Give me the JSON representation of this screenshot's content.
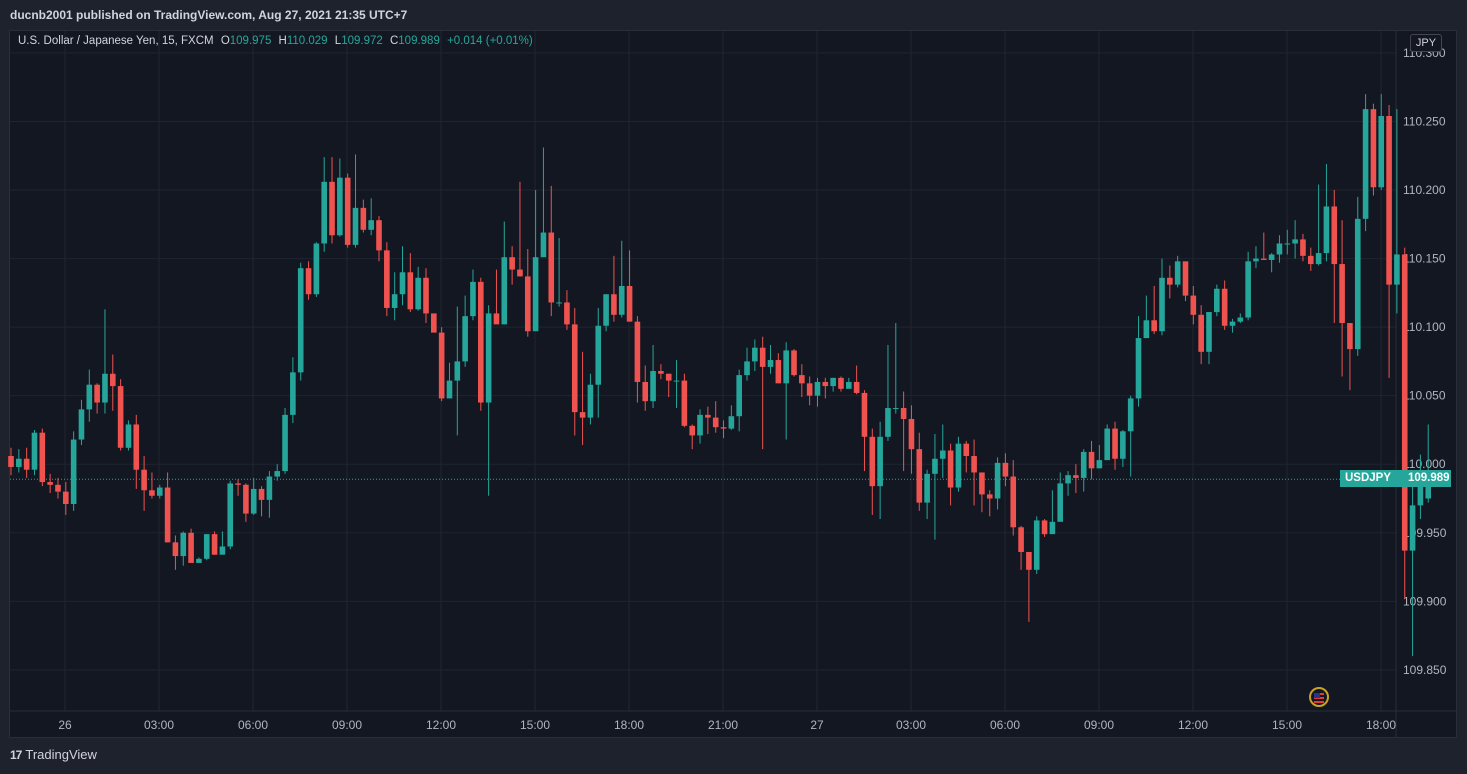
{
  "header": {
    "published_text": "ducnb2001 published on TradingView.com, Aug 27, 2021 21:35 UTC+7"
  },
  "legend": {
    "instrument": "U.S. Dollar / Japanese Yen, 15, FXCM",
    "o_label": "O",
    "o_value": "109.975",
    "h_label": "H",
    "h_value": "110.029",
    "l_label": "L",
    "l_value": "109.972",
    "c_label": "C",
    "c_value": "109.989",
    "change": "+0.014 (+0.01%)"
  },
  "currency_badge": "JPY",
  "price_tag": {
    "symbol": "USDJPY",
    "value": "109.989"
  },
  "footer": {
    "brand": "TradingView",
    "logo_glyph": "17"
  },
  "colors": {
    "up": "#26a69a",
    "down": "#ef5350",
    "background": "#131722",
    "grid": "#1f2430",
    "text": "#b2b5be"
  },
  "icons": {
    "flag": "us-flag-icon",
    "logo": "tradingview-logo-icon"
  },
  "chart_data": {
    "type": "candlestick",
    "symbol": "USDJPY",
    "interval": "15",
    "ylim": [
      109.82,
      110.316
    ],
    "y_ticks": [
      "110.300",
      "110.250",
      "110.200",
      "110.150",
      "110.100",
      "110.050",
      "110.000",
      "109.950",
      "109.900",
      "109.850"
    ],
    "x_ticks": [
      "26",
      "03:00",
      "06:00",
      "09:00",
      "12:00",
      "15:00",
      "18:00",
      "21:00",
      "27",
      "03:00",
      "06:00",
      "09:00",
      "12:00",
      "15:00",
      "18:00"
    ],
    "last_price": 109.989,
    "grid": true,
    "candles": [
      [
        110.006,
        109.998,
        110.012,
        109.992
      ],
      [
        109.998,
        110.004,
        110.011,
        109.994
      ],
      [
        110.004,
        109.996,
        110.012,
        109.99
      ],
      [
        109.996,
        110.023,
        110.025,
        109.992
      ],
      [
        110.023,
        109.987,
        110.026,
        109.984
      ],
      [
        109.987,
        109.985,
        109.993,
        109.979
      ],
      [
        109.985,
        109.98,
        109.99,
        109.975
      ],
      [
        109.98,
        109.971,
        109.987,
        109.963
      ],
      [
        109.971,
        110.018,
        110.024,
        109.966
      ],
      [
        110.018,
        110.04,
        110.047,
        110.014
      ],
      [
        110.04,
        110.058,
        110.069,
        110.031
      ],
      [
        110.058,
        110.045,
        110.059,
        110.037
      ],
      [
        110.045,
        110.066,
        110.113,
        110.037
      ],
      [
        110.066,
        110.057,
        110.08,
        110.039
      ],
      [
        110.057,
        110.012,
        110.062,
        110.01
      ],
      [
        110.012,
        110.029,
        110.032,
        110.01
      ],
      [
        110.029,
        109.996,
        110.036,
        109.982
      ],
      [
        109.996,
        109.981,
        110.006,
        109.966
      ],
      [
        109.981,
        109.977,
        109.994,
        109.975
      ],
      [
        109.977,
        109.983,
        109.985,
        109.975
      ],
      [
        109.983,
        109.943,
        109.994,
        109.943
      ],
      [
        109.943,
        109.933,
        109.948,
        109.923
      ],
      [
        109.933,
        109.95,
        109.951,
        109.926
      ],
      [
        109.95,
        109.928,
        109.953,
        109.93
      ],
      [
        109.928,
        109.931,
        109.932,
        109.93
      ],
      [
        109.931,
        109.949,
        109.949,
        109.93
      ],
      [
        109.949,
        109.934,
        109.951,
        109.934
      ],
      [
        109.934,
        109.94,
        109.951,
        109.938
      ],
      [
        109.94,
        109.986,
        109.988,
        109.938
      ],
      [
        109.986,
        109.985,
        109.989,
        109.977
      ],
      [
        109.985,
        109.964,
        109.986,
        109.958
      ],
      [
        109.964,
        109.982,
        109.99,
        109.963
      ],
      [
        109.982,
        109.974,
        109.984,
        109.962
      ],
      [
        109.974,
        109.991,
        109.995,
        109.961
      ],
      [
        109.991,
        109.995,
        110.0,
        109.988
      ],
      [
        109.995,
        110.036,
        110.041,
        109.993
      ],
      [
        110.036,
        110.067,
        110.078,
        110.03
      ],
      [
        110.067,
        110.143,
        110.147,
        110.061
      ],
      [
        110.143,
        110.124,
        110.148,
        110.12
      ],
      [
        110.124,
        110.161,
        110.162,
        110.122
      ],
      [
        110.161,
        110.206,
        110.224,
        110.155
      ],
      [
        110.206,
        110.167,
        110.224,
        110.161
      ],
      [
        110.167,
        110.209,
        110.223,
        110.166
      ],
      [
        110.209,
        110.16,
        110.212,
        110.158
      ],
      [
        110.16,
        110.187,
        110.226,
        110.158
      ],
      [
        110.187,
        110.171,
        110.193,
        110.169
      ],
      [
        110.171,
        110.178,
        110.194,
        110.167
      ],
      [
        110.178,
        110.156,
        110.181,
        110.148
      ],
      [
        110.156,
        110.114,
        110.162,
        110.108
      ],
      [
        110.114,
        110.124,
        110.14,
        110.105
      ],
      [
        110.124,
        110.14,
        110.159,
        110.116
      ],
      [
        110.14,
        110.113,
        110.154,
        110.111
      ],
      [
        110.113,
        110.136,
        110.144,
        110.112
      ],
      [
        110.136,
        110.11,
        110.143,
        110.103
      ],
      [
        110.11,
        110.096,
        110.108,
        110.097
      ],
      [
        110.096,
        110.048,
        110.1,
        110.046
      ],
      [
        110.048,
        110.061,
        110.074,
        110.049
      ],
      [
        110.061,
        110.075,
        110.115,
        110.021
      ],
      [
        110.075,
        110.108,
        110.123,
        110.071
      ],
      [
        110.108,
        110.133,
        110.142,
        110.105
      ],
      [
        110.133,
        110.045,
        110.136,
        110.039
      ],
      [
        110.045,
        110.11,
        110.116,
        109.977
      ],
      [
        110.11,
        110.102,
        110.142,
        110.106
      ],
      [
        110.102,
        110.151,
        110.177,
        110.147
      ],
      [
        110.151,
        110.142,
        110.159,
        110.131
      ],
      [
        110.142,
        110.137,
        110.206,
        110.139
      ],
      [
        110.137,
        110.097,
        110.157,
        110.093
      ],
      [
        110.097,
        110.151,
        110.2,
        110.147
      ],
      [
        110.151,
        110.169,
        110.231,
        110.165
      ],
      [
        110.169,
        110.118,
        110.203,
        110.108
      ],
      [
        110.118,
        110.118,
        110.165,
        110.115
      ],
      [
        110.118,
        110.102,
        110.127,
        110.098
      ],
      [
        110.102,
        110.038,
        110.114,
        110.021
      ],
      [
        110.038,
        110.034,
        110.082,
        110.014
      ],
      [
        110.034,
        110.058,
        110.066,
        110.029
      ],
      [
        110.058,
        110.101,
        110.114,
        110.034
      ],
      [
        110.101,
        110.124,
        110.124,
        110.097
      ],
      [
        110.124,
        110.109,
        110.152,
        110.104
      ],
      [
        110.109,
        110.13,
        110.163,
        110.107
      ],
      [
        110.13,
        110.104,
        110.156,
        110.106
      ],
      [
        110.104,
        110.06,
        110.108,
        110.045
      ],
      [
        110.06,
        110.046,
        110.072,
        110.039
      ],
      [
        110.046,
        110.068,
        110.087,
        110.041
      ],
      [
        110.068,
        110.066,
        110.073,
        110.062
      ],
      [
        110.066,
        110.061,
        110.066,
        110.049
      ],
      [
        110.061,
        110.061,
        110.076,
        110.041
      ],
      [
        110.061,
        110.028,
        110.066,
        110.027
      ],
      [
        110.028,
        110.021,
        110.029,
        110.011
      ],
      [
        110.021,
        110.036,
        110.04,
        110.015
      ],
      [
        110.036,
        110.034,
        110.042,
        110.022
      ],
      [
        110.034,
        110.027,
        110.046,
        110.023
      ],
      [
        110.027,
        110.026,
        110.032,
        110.019
      ],
      [
        110.026,
        110.035,
        110.043,
        110.025
      ],
      [
        110.035,
        110.065,
        110.069,
        110.024
      ],
      [
        110.065,
        110.075,
        110.085,
        110.061
      ],
      [
        110.075,
        110.085,
        110.091,
        110.068
      ],
      [
        110.085,
        110.071,
        110.093,
        110.011
      ],
      [
        110.071,
        110.076,
        110.087,
        110.066
      ],
      [
        110.076,
        110.059,
        110.081,
        110.062
      ],
      [
        110.059,
        110.083,
        110.089,
        110.018
      ],
      [
        110.083,
        110.065,
        110.084,
        110.064
      ],
      [
        110.065,
        110.059,
        110.073,
        110.049
      ],
      [
        110.059,
        110.05,
        110.064,
        110.043
      ],
      [
        110.05,
        110.06,
        110.063,
        110.042
      ],
      [
        110.06,
        110.057,
        110.063,
        110.048
      ],
      [
        110.057,
        110.063,
        110.063,
        110.053
      ],
      [
        110.063,
        110.055,
        110.064,
        110.053
      ],
      [
        110.055,
        110.06,
        110.063,
        110.058
      ],
      [
        110.06,
        110.052,
        110.072,
        110.051
      ],
      [
        110.052,
        110.02,
        110.054,
        109.995
      ],
      [
        110.02,
        109.984,
        110.026,
        109.963
      ],
      [
        109.984,
        110.02,
        110.031,
        109.96
      ],
      [
        110.02,
        110.041,
        110.087,
        110.017
      ],
      [
        110.041,
        110.041,
        110.103,
        110.037
      ],
      [
        110.041,
        110.033,
        110.053,
        109.995
      ],
      [
        110.033,
        110.011,
        110.043,
        109.993
      ],
      [
        110.011,
        109.972,
        110.023,
        109.966
      ],
      [
        109.972,
        109.993,
        109.996,
        109.96
      ],
      [
        109.993,
        110.004,
        110.022,
        109.945
      ],
      [
        110.004,
        110.01,
        110.029,
        109.99
      ],
      [
        110.01,
        109.983,
        110.015,
        109.97
      ],
      [
        109.983,
        110.015,
        110.02,
        109.98
      ],
      [
        110.015,
        110.006,
        110.017,
        109.994
      ],
      [
        110.006,
        109.994,
        110.018,
        109.97
      ],
      [
        109.994,
        109.978,
        109.992,
        109.965
      ],
      [
        109.978,
        109.975,
        109.981,
        109.962
      ],
      [
        109.975,
        110.001,
        110.005,
        109.967
      ],
      [
        110.001,
        109.991,
        110.008,
        109.984
      ],
      [
        109.991,
        109.954,
        110.003,
        109.948
      ],
      [
        109.954,
        109.936,
        109.955,
        109.923
      ],
      [
        109.936,
        109.923,
        109.936,
        109.885
      ],
      [
        109.923,
        109.959,
        109.962,
        109.92
      ],
      [
        109.959,
        109.949,
        109.96,
        109.947
      ],
      [
        109.949,
        109.958,
        109.981,
        109.957
      ],
      [
        109.958,
        109.986,
        109.994,
        109.96
      ],
      [
        109.986,
        109.992,
        109.995,
        109.977
      ],
      [
        109.992,
        109.99,
        110.0,
        109.979
      ],
      [
        109.99,
        110.009,
        110.011,
        109.98
      ],
      [
        110.009,
        109.997,
        110.017,
        109.989
      ],
      [
        109.997,
        110.003,
        110.014,
        109.999
      ],
      [
        110.003,
        110.026,
        110.029,
        110.003
      ],
      [
        110.026,
        110.004,
        110.031,
        109.996
      ],
      [
        110.004,
        110.024,
        110.025,
        109.998
      ],
      [
        110.024,
        110.048,
        110.05,
        109.991
      ],
      [
        110.048,
        110.092,
        110.108,
        110.042
      ],
      [
        110.092,
        110.105,
        110.123,
        110.095
      ],
      [
        110.105,
        110.097,
        110.13,
        110.095
      ],
      [
        110.097,
        110.136,
        110.15,
        110.094
      ],
      [
        110.136,
        110.131,
        110.145,
        110.121
      ],
      [
        110.131,
        110.148,
        110.152,
        110.129
      ],
      [
        110.148,
        110.123,
        110.144,
        110.119
      ],
      [
        110.123,
        110.109,
        110.13,
        110.102
      ],
      [
        110.109,
        110.082,
        110.116,
        110.073
      ],
      [
        110.082,
        110.111,
        110.11,
        110.073
      ],
      [
        110.111,
        110.128,
        110.131,
        110.108
      ],
      [
        110.128,
        110.101,
        110.134,
        110.098
      ],
      [
        110.101,
        110.104,
        110.106,
        110.096
      ],
      [
        110.104,
        110.107,
        110.11,
        110.103
      ],
      [
        110.107,
        110.148,
        110.155,
        110.105
      ],
      [
        110.148,
        110.15,
        110.159,
        110.143
      ],
      [
        110.15,
        110.149,
        110.169,
        110.15
      ],
      [
        110.149,
        110.153,
        110.154,
        110.14
      ],
      [
        110.153,
        110.161,
        110.167,
        110.147
      ],
      [
        110.161,
        110.161,
        110.171,
        110.153
      ],
      [
        110.161,
        110.164,
        110.178,
        110.15
      ],
      [
        110.164,
        110.152,
        110.168,
        110.148
      ],
      [
        110.152,
        110.146,
        110.158,
        110.141
      ],
      [
        110.146,
        110.154,
        110.204,
        110.145
      ],
      [
        110.154,
        110.188,
        110.219,
        110.148
      ],
      [
        110.188,
        110.146,
        110.2,
        110.103
      ],
      [
        110.146,
        110.103,
        110.178,
        110.064
      ],
      [
        110.103,
        110.084,
        110.1,
        110.054
      ],
      [
        110.084,
        110.179,
        110.195,
        110.079
      ],
      [
        110.179,
        110.259,
        110.27,
        110.17
      ],
      [
        110.259,
        110.202,
        110.263,
        110.196
      ],
      [
        110.202,
        110.254,
        110.27,
        110.2
      ],
      [
        110.254,
        110.131,
        110.262,
        110.063
      ],
      [
        110.131,
        110.153,
        110.259,
        110.11
      ],
      [
        110.153,
        109.937,
        110.158,
        109.902
      ],
      [
        109.937,
        109.97,
        109.993,
        109.86
      ],
      [
        109.97,
        109.985,
        110.007,
        109.96
      ],
      [
        109.975,
        109.989,
        110.029,
        109.972
      ]
    ]
  }
}
